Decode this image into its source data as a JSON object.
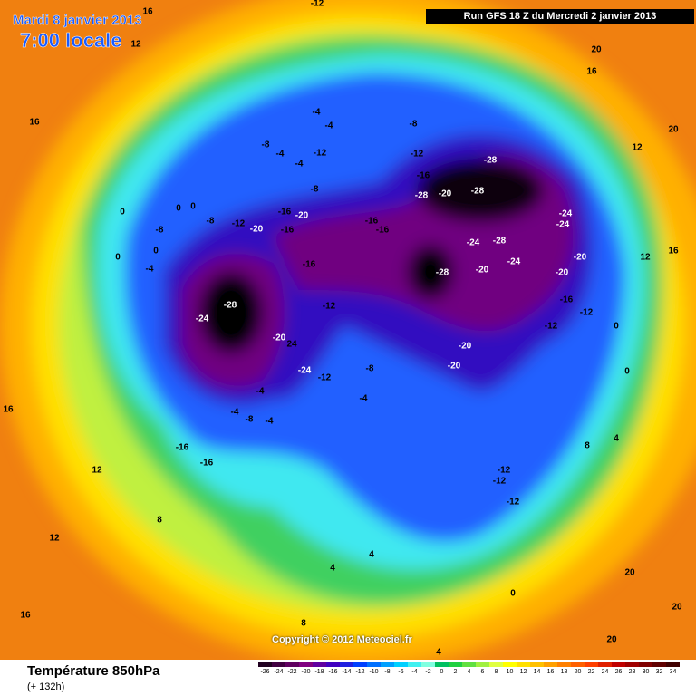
{
  "header": {
    "date": "Mardi 8 janvier 2013",
    "time": "7:00 locale",
    "run": "Run GFS 18 Z du Mercredi 2 janvier 2013"
  },
  "footer": {
    "copyright": "Copyright © 2012 Meteociel.fr",
    "title": "Température 850hPa",
    "subtitle": "(+ 132h)"
  },
  "legend": {
    "ticks": [
      -26,
      -24,
      -22,
      -20,
      -18,
      -16,
      -14,
      -12,
      -10,
      -8,
      -6,
      -4,
      -2,
      0,
      2,
      4,
      6,
      8,
      10,
      12,
      14,
      16,
      18,
      20,
      22,
      24,
      26,
      28,
      30,
      32,
      34
    ],
    "colors": [
      "#200020",
      "#400040",
      "#600060",
      "#800080",
      "#6000a0",
      "#4000c0",
      "#2020e0",
      "#0040ff",
      "#0070ff",
      "#00a0ff",
      "#00d0ff",
      "#40f0f0",
      "#80ffe0",
      "#00c060",
      "#20d040",
      "#60e040",
      "#a0f040",
      "#e0ff40",
      "#ffff00",
      "#ffe000",
      "#ffc000",
      "#ffa000",
      "#ff8000",
      "#ff6000",
      "#ff4000",
      "#e02000",
      "#c00000",
      "#a00000",
      "#800000",
      "#600000",
      "#400000"
    ]
  },
  "contour_labels": [
    -28,
    -24,
    -28,
    -20,
    -28,
    -28,
    -24,
    -24,
    -24,
    -28,
    -24,
    -20,
    -20,
    -28,
    -20,
    -16,
    -12,
    -12,
    -20,
    -20,
    -16,
    -12,
    -20,
    24,
    -24,
    -12,
    -8,
    -4,
    -16,
    -16,
    -4,
    -8,
    -4,
    -4,
    -12,
    -12,
    -12,
    -20,
    -16,
    -16,
    -20,
    -12,
    -8,
    -8,
    -8,
    -4,
    -4,
    -12,
    -8,
    -4,
    -4,
    -8,
    -12,
    -16,
    -16,
    -16,
    0,
    0,
    0,
    0,
    0,
    -4,
    0,
    0,
    4,
    8,
    8,
    12,
    12,
    16,
    16,
    16,
    12,
    12,
    16,
    20,
    16,
    20,
    4,
    4,
    0,
    20,
    20,
    20,
    4,
    8,
    -12,
    12,
    16
  ]
}
